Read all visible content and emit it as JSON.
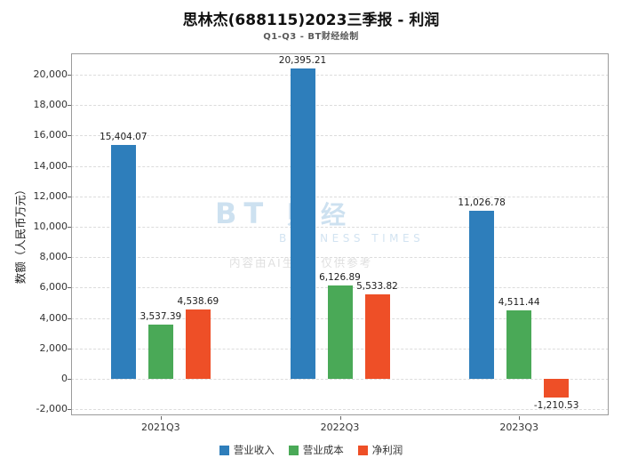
{
  "title": "思林杰(688115)2023三季报 - 利润",
  "subtitle": "Q1-Q3 - BT财经绘制",
  "watermark": {
    "logo_bt": "BT",
    "logo_cn": "财 经",
    "logo_sub": "BUSINESS TIMES",
    "disclaimer": "内容由AI生成，仅供参考"
  },
  "chart_data": {
    "type": "bar",
    "categories": [
      "2021Q3",
      "2022Q3",
      "2023Q3"
    ],
    "series": [
      {
        "name": "营业收入",
        "color": "#2e7ebb",
        "values": [
          15404.07,
          20395.21,
          11026.78
        ]
      },
      {
        "name": "营业成本",
        "color": "#4aa957",
        "values": [
          3537.39,
          6126.89,
          4511.44
        ]
      },
      {
        "name": "净利润",
        "color": "#ee4f27",
        "values": [
          4538.69,
          5533.82,
          -1210.53
        ]
      }
    ],
    "title": "思林杰(688115)2023三季报 - 利润",
    "xlabel": "",
    "ylabel": "数额（人民币万元）",
    "ylim": [
      -2400,
      21400
    ],
    "yticks": [
      -2000,
      0,
      2000,
      4000,
      6000,
      8000,
      10000,
      12000,
      14000,
      16000,
      18000,
      20000
    ],
    "grid": true,
    "legend_position": "bottom"
  }
}
